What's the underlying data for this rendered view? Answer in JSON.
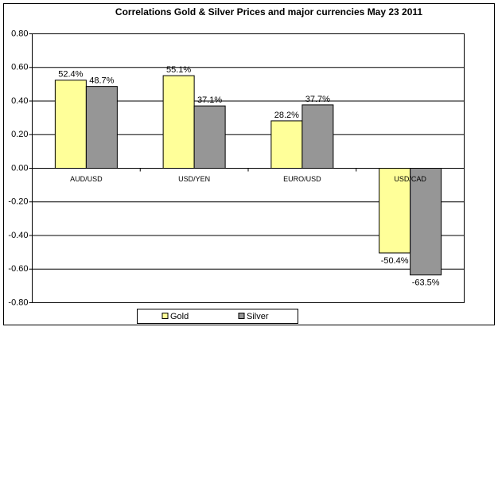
{
  "chart_data": {
    "type": "bar",
    "title": "Correlations Gold & Silver Prices and major currencies May 23 2011",
    "categories": [
      "AUD/USD",
      "USD/YEN",
      "EURO/USD",
      "USD/CAD"
    ],
    "series": [
      {
        "name": "Gold",
        "color": "#ffff99",
        "values": [
          0.524,
          0.551,
          0.282,
          -0.504
        ],
        "value_labels": [
          "52.4%",
          "55.1%",
          "28.2%",
          "-50.4%"
        ]
      },
      {
        "name": "Silver",
        "color": "#969696",
        "values": [
          0.487,
          0.371,
          0.377,
          -0.635
        ],
        "value_labels": [
          "48.7%",
          "37.1%",
          "37.7%",
          "-63.5%"
        ]
      }
    ],
    "ylim": [
      -0.8,
      0.8
    ],
    "yticks": [
      {
        "value": -0.8,
        "label": "-0.80"
      },
      {
        "value": -0.6,
        "label": "-0.60"
      },
      {
        "value": -0.4,
        "label": "-0.40"
      },
      {
        "value": -0.2,
        "label": "-0.20"
      },
      {
        "value": 0,
        "label": "0.00"
      },
      {
        "value": 0.2,
        "label": "0.20"
      },
      {
        "value": 0.4,
        "label": "0.40"
      },
      {
        "value": 0.6,
        "label": "0.60"
      },
      {
        "value": 0.8,
        "label": "0.80"
      }
    ],
    "grid": true,
    "legend": "bottom"
  }
}
